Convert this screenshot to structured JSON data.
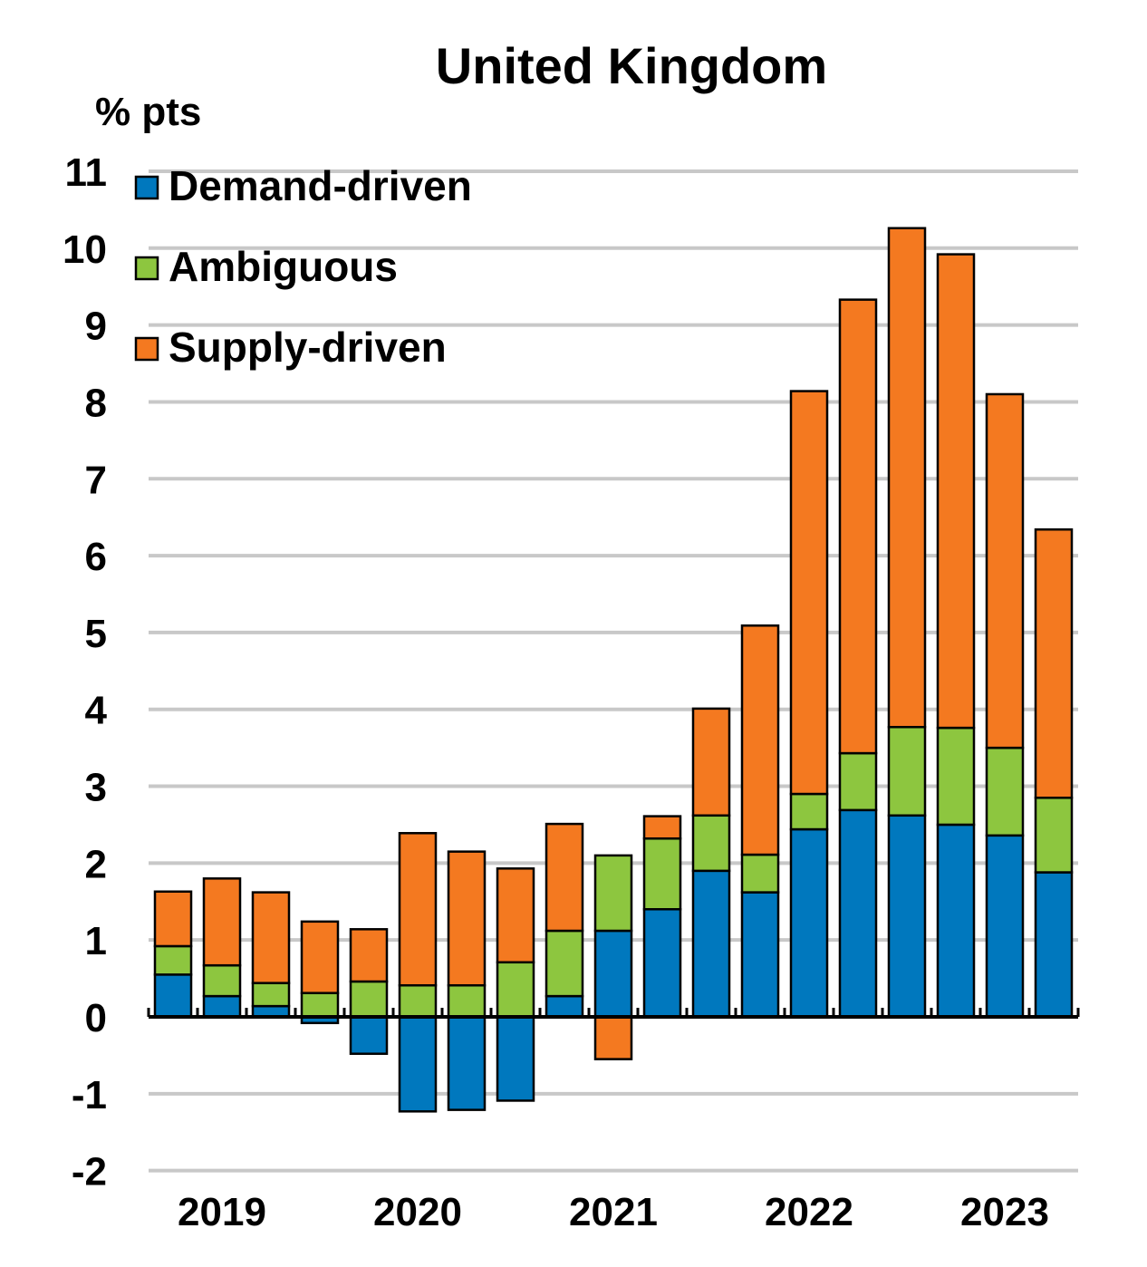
{
  "chart_data": {
    "type": "bar",
    "stacked": true,
    "title": "United Kingdom",
    "ylabel": "% pts",
    "xlabel": "",
    "ylim": [
      -2,
      11
    ],
    "yticks": [
      -2,
      -1,
      0,
      1,
      2,
      3,
      4,
      5,
      6,
      7,
      8,
      9,
      10,
      11
    ],
    "grid": true,
    "legend_position": "top-left",
    "categories": [
      "2019Q1",
      "2019Q2",
      "2019Q3",
      "2019Q4",
      "2020Q1",
      "2020Q2",
      "2020Q3",
      "2020Q4",
      "2021Q1",
      "2021Q2",
      "2021Q3",
      "2021Q4",
      "2022Q1",
      "2022Q2",
      "2022Q3",
      "2022Q4",
      "2023Q1",
      "2023Q2",
      "2023Q3"
    ],
    "xtick_labels": [
      "2019",
      "2020",
      "2021",
      "2022",
      "2023"
    ],
    "series": [
      {
        "name": "Demand-driven",
        "color": "#0078BE",
        "values": [
          0.55,
          0.27,
          0.14,
          -0.08,
          -0.48,
          -1.23,
          -1.21,
          -1.09,
          0.27,
          1.12,
          1.4,
          1.9,
          1.62,
          2.44,
          2.69,
          2.62,
          2.5,
          2.36,
          1.88
        ]
      },
      {
        "name": "Ambiguous",
        "color": "#8DC63F",
        "values": [
          0.37,
          0.4,
          0.3,
          0.31,
          0.46,
          0.41,
          0.41,
          0.71,
          0.85,
          0.98,
          0.92,
          0.72,
          0.49,
          0.46,
          0.74,
          1.15,
          1.26,
          1.14,
          0.97
        ]
      },
      {
        "name": "Supply-driven",
        "color": "#F47920",
        "values": [
          0.71,
          1.13,
          1.18,
          0.93,
          0.68,
          1.98,
          1.74,
          1.22,
          1.39,
          -0.55,
          0.29,
          1.39,
          2.98,
          5.24,
          5.9,
          6.49,
          6.16,
          4.6,
          3.49
        ]
      }
    ]
  }
}
